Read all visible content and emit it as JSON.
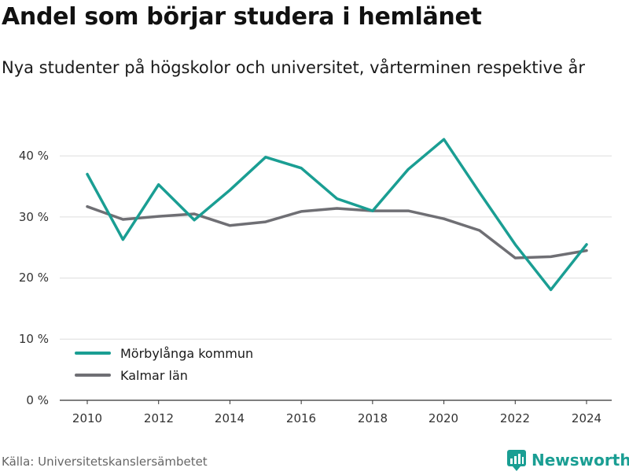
{
  "header": {
    "title": "Andel som börjar studera i hemlänet",
    "subtitle": "Nya studenter på högskolor och universitet, vårterminen respektive år"
  },
  "footer": {
    "source": "Källa: Universitetskanslersämbetet",
    "brand": "Newsworthy"
  },
  "icons": {
    "brand_logo": "newsworthy-logo-icon"
  },
  "colors": {
    "morbylanga": "#1a9e93",
    "kalmar": "#6f6f74",
    "brand": "#1a9e93",
    "grid": "#dddddd"
  },
  "chart_data": {
    "type": "line",
    "x": [
      2010,
      2011,
      2012,
      2013,
      2014,
      2015,
      2016,
      2017,
      2018,
      2019,
      2020,
      2021,
      2022,
      2023,
      2024
    ],
    "series": [
      {
        "name": "Mörbylånga kommun",
        "color": "#1a9e93",
        "values": [
          37.0,
          26.3,
          35.3,
          29.5,
          34.4,
          39.8,
          38.0,
          33.0,
          31.0,
          37.8,
          42.7,
          34.0,
          25.5,
          18.1,
          25.5
        ]
      },
      {
        "name": "Kalmar län",
        "color": "#6f6f74",
        "values": [
          31.7,
          29.6,
          30.1,
          30.5,
          28.6,
          29.2,
          30.9,
          31.4,
          31.0,
          31.0,
          29.7,
          27.8,
          23.3,
          23.5,
          24.5
        ]
      }
    ],
    "xticks": [
      "2010",
      "2012",
      "2014",
      "2016",
      "2018",
      "2020",
      "2022",
      "2024"
    ],
    "yticks": [
      "0 %",
      "10 %",
      "20 %",
      "30 %",
      "40 %"
    ],
    "ylim": [
      0,
      45
    ],
    "grid": "horizontal",
    "legend_position": "bottom-left"
  }
}
